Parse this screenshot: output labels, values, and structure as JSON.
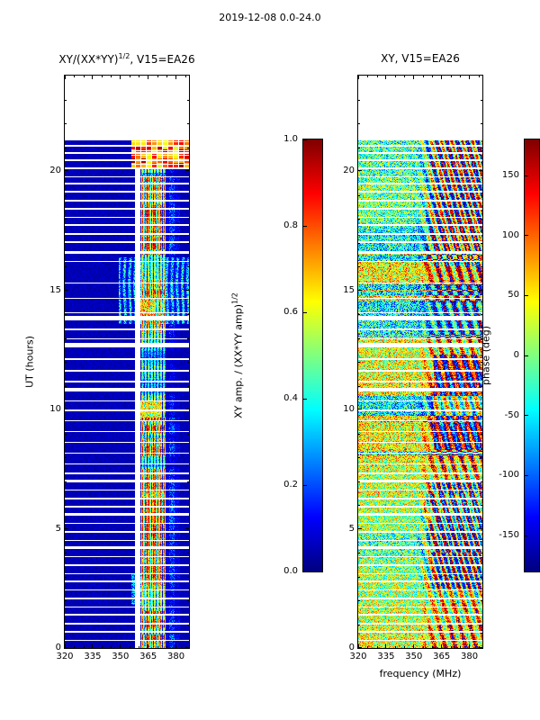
{
  "figure": {
    "title": "2019-12-08 0.0-24.0"
  },
  "left_panel": {
    "title_prefix": "XY/(XX*YY)",
    "title_sup": "1/2",
    "title_suffix": ", V15=EA26",
    "ylabel": "UT (hours)",
    "x_tick_labels": [
      "320",
      "335",
      "350",
      "365",
      "380"
    ],
    "y_tick_labels": [
      "0",
      "5",
      "10",
      "15",
      "20"
    ]
  },
  "right_panel": {
    "title": "XY, V15=EA26",
    "xlabel": "frequency (MHz)",
    "x_tick_labels": [
      "320",
      "335",
      "350",
      "365",
      "380"
    ],
    "y_tick_labels": [
      "0",
      "5",
      "10",
      "15",
      "20"
    ]
  },
  "left_colorbar": {
    "label_prefix": "XY amp. / (XX*YY amp)",
    "label_sup": "1/2",
    "tick_labels": [
      "1.0",
      "0.8",
      "0.6",
      "0.4",
      "0.2",
      "0.0"
    ]
  },
  "right_colorbar": {
    "label": "phase (deg)",
    "tick_labels": [
      "150",
      "100",
      "50",
      "0",
      "-50",
      "-100",
      "-150"
    ]
  },
  "chart_data": [
    {
      "type": "heatmap",
      "panel": "left",
      "title": "XY/(XX*YY)^(1/2), V15=EA26",
      "xlabel": "frequency (MHz)",
      "ylabel": "UT (hours)",
      "x_range": [
        320,
        387
      ],
      "y_range": [
        0,
        24
      ],
      "data_y_extent": [
        0,
        21.3
      ],
      "x_ticks": [
        320,
        335,
        350,
        365,
        380
      ],
      "y_ticks": [
        0,
        5,
        10,
        15,
        20
      ],
      "colormap": "jet",
      "value_range": [
        0,
        1
      ],
      "colorbar_label": "XY amp. / (XX*YY amp)^(1/2)",
      "colorbar_ticks": [
        1.0,
        0.8,
        0.6,
        0.4,
        0.2,
        0.0
      ],
      "description": "Cross-hand amplitude-ratio dynamic spectrum: mostly ~0.05 (dark blue) with a persistent RFI band at ~362-374 MHz, a white flagged channel gap at ~358-361 MHz, saturated red blocky interference above 356 MHz after 20.2 h, a structured enhancement 13.6-16.4 h above 349 MHz, and many white flagged time rows.",
      "rfi_band_mhz": [
        361.5,
        374.5
      ],
      "flagged_channels_mhz": [
        [
          357.8,
          360.8
        ]
      ],
      "bright_top_block": {
        "t_range": [
          20.15,
          21.3
        ],
        "f_min": 356,
        "value_range": [
          0.6,
          1.0
        ]
      },
      "structured_region": {
        "t_range": [
          13.6,
          16.4
        ],
        "f_min": 349
      },
      "enhancement_patches": [
        {
          "t_range": [
            9.6,
            10.35
          ],
          "f_range": [
            361,
            372
          ],
          "value": "0.3-0.8"
        },
        {
          "t_range": [
            13.9,
            14.7
          ],
          "f_range": [
            360,
            368
          ],
          "value": "0.4-0.85"
        },
        {
          "t_range": [
            5.2,
            6.7
          ],
          "f_range": [
            361.5,
            374.5
          ],
          "value": "0.2-0.7"
        },
        {
          "t_range": [
            1.8,
            3.1
          ],
          "f_range": [
            356,
            369
          ],
          "value": "0.1-0.42"
        }
      ],
      "flagged_time_gaps_hours": [
        [
          0.3,
          0.05
        ],
        [
          0.65,
          0.06
        ],
        [
          1.0,
          0.05
        ],
        [
          1.35,
          0.08
        ],
        [
          1.7,
          0.05
        ],
        [
          2.05,
          0.06
        ],
        [
          2.4,
          0.05
        ],
        [
          2.75,
          0.08
        ],
        [
          3.1,
          0.05
        ],
        [
          3.45,
          0.06
        ],
        [
          3.8,
          0.05
        ],
        [
          4.15,
          0.1
        ],
        [
          4.5,
          0.05
        ],
        [
          4.85,
          0.06
        ],
        [
          5.2,
          0.05
        ],
        [
          5.55,
          0.1
        ],
        [
          5.9,
          0.05
        ],
        [
          6.25,
          0.06
        ],
        [
          6.6,
          0.05
        ],
        [
          6.95,
          0.1
        ],
        [
          7.3,
          0.06
        ],
        [
          7.7,
          0.05
        ],
        [
          8.15,
          0.06
        ],
        [
          8.6,
          0.05
        ],
        [
          9.05,
          0.06
        ],
        [
          9.5,
          0.05
        ],
        [
          9.95,
          0.06
        ],
        [
          10.35,
          0.05
        ],
        [
          10.75,
          0.18
        ],
        [
          11.15,
          0.05
        ],
        [
          11.6,
          0.06
        ],
        [
          12.1,
          0.05
        ],
        [
          12.6,
          0.22
        ],
        [
          12.95,
          0.05
        ],
        [
          13.35,
          0.06
        ],
        [
          13.75,
          0.18
        ],
        [
          14.05,
          0.05
        ],
        [
          14.65,
          0.04
        ],
        [
          15.3,
          0.04
        ],
        [
          16.2,
          0.05
        ],
        [
          16.55,
          0.12
        ],
        [
          17.0,
          0.06
        ],
        [
          17.35,
          0.05
        ],
        [
          17.7,
          0.08
        ],
        [
          18.05,
          0.05
        ],
        [
          18.4,
          0.06
        ],
        [
          18.75,
          0.05
        ],
        [
          19.1,
          0.1
        ],
        [
          19.45,
          0.06
        ],
        [
          19.75,
          0.05
        ],
        [
          20.1,
          0.08
        ],
        [
          20.45,
          0.05
        ],
        [
          20.75,
          0.05
        ],
        [
          21.05,
          0.06
        ]
      ],
      "render_seed": 20191208
    },
    {
      "type": "heatmap",
      "panel": "right",
      "title": "XY, V15=EA26",
      "xlabel": "frequency (MHz)",
      "ylabel": "UT (hours)",
      "x_range": [
        320,
        387
      ],
      "y_range": [
        0,
        24
      ],
      "data_y_extent": [
        0,
        21.3
      ],
      "x_ticks": [
        320,
        335,
        350,
        365,
        380
      ],
      "y_ticks": [
        0,
        5,
        10,
        15,
        20
      ],
      "colormap": "jet",
      "value_range": [
        -180,
        180
      ],
      "colorbar_label": "phase (deg)",
      "colorbar_ticks": [
        150,
        100,
        50,
        0,
        -50,
        -100,
        -150
      ],
      "description": "Cross-hand phase dynamic spectrum: noisy mottled mid-range phases (cyan/green/yellow) below ~356 MHz and strongly saturated diagonal phase-wrap streaks (dark red / dark blue) above ~356 MHz; shares the same white flagged time rows as the left panel.",
      "high_variance_f_min": 356,
      "flagged_time_gaps_hours": "same_as_left_panel",
      "render_seed": 842
    }
  ]
}
